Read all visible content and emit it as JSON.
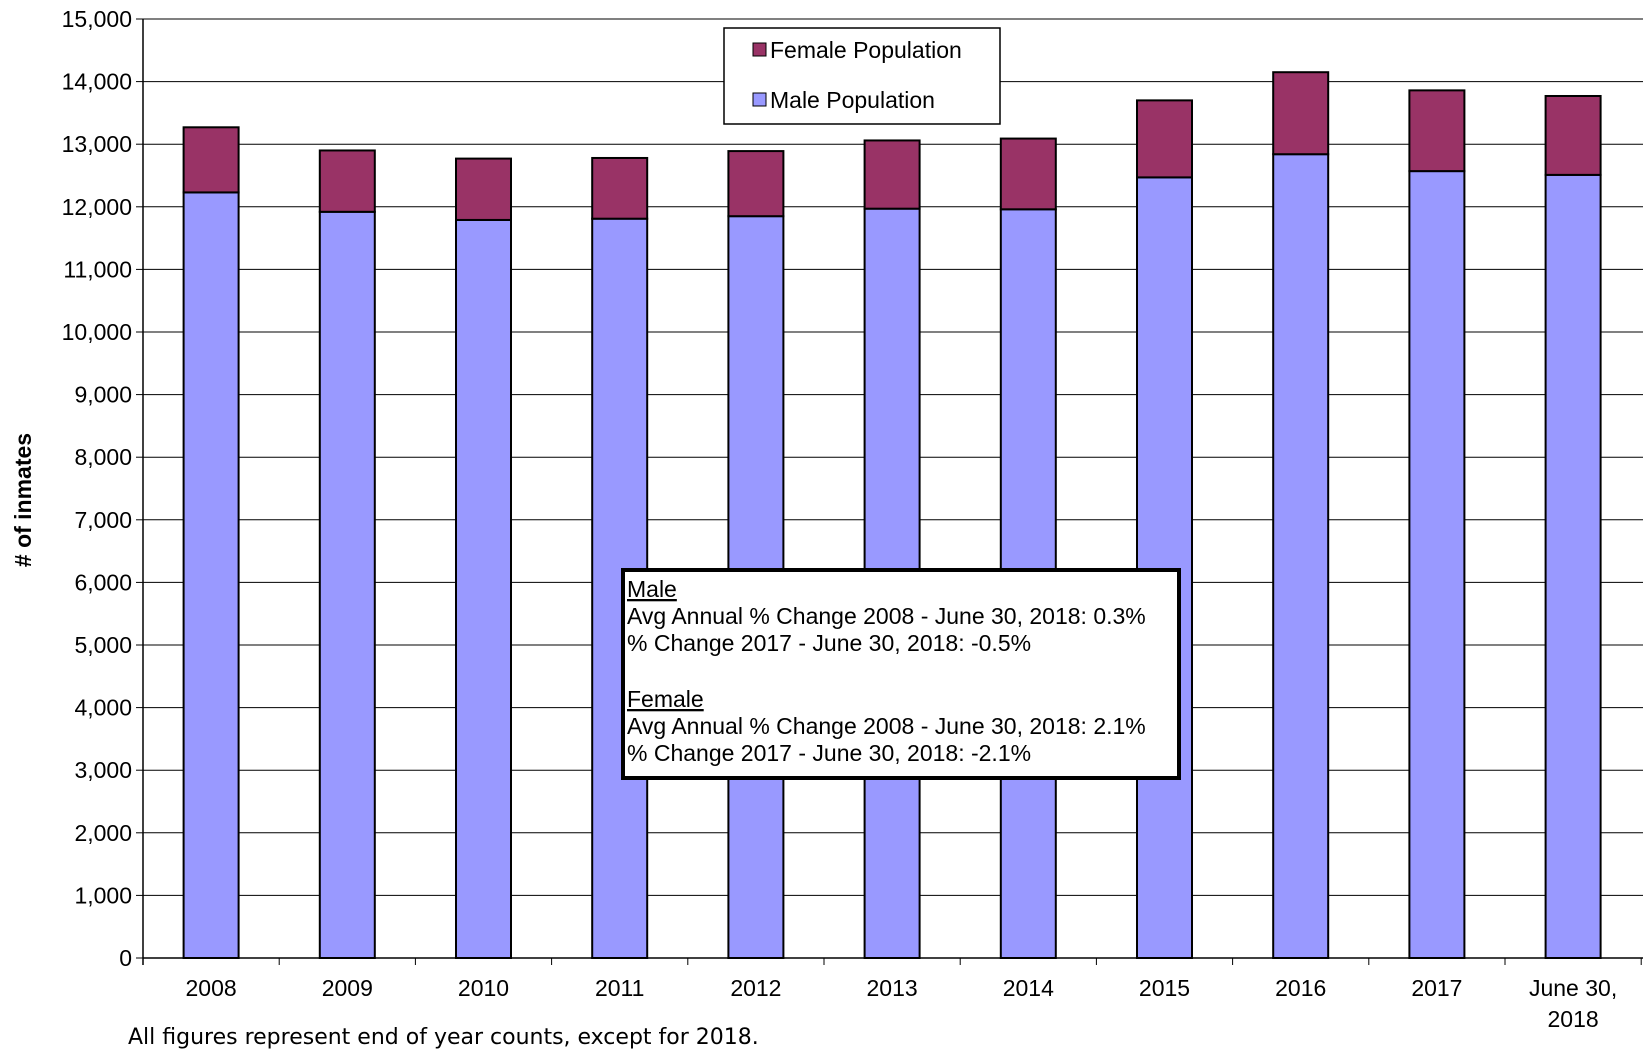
{
  "chart_data": {
    "type": "bar",
    "stacked": true,
    "categories": [
      [
        "2008"
      ],
      [
        "2009"
      ],
      [
        "2010"
      ],
      [
        "2011"
      ],
      [
        "2012"
      ],
      [
        "2013"
      ],
      [
        "2014"
      ],
      [
        "2015"
      ],
      [
        "2016"
      ],
      [
        "2017"
      ],
      [
        "June 30,",
        "2018"
      ]
    ],
    "series": [
      {
        "name": "Male Population",
        "color": "#9999ff",
        "values": [
          12230,
          11920,
          11790,
          11810,
          11850,
          11970,
          11960,
          12470,
          12840,
          12570,
          12510
        ]
      },
      {
        "name": "Female Population",
        "color": "#993366",
        "values": [
          1040,
          980,
          980,
          970,
          1040,
          1090,
          1130,
          1230,
          1310,
          1290,
          1260
        ]
      }
    ],
    "ylabel": "# of inmates",
    "ylim": [
      0,
      15000
    ],
    "ytick_step": 1000,
    "ytick_labels": [
      "0",
      "1,000",
      "2,000",
      "3,000",
      "4,000",
      "5,000",
      "6,000",
      "7,000",
      "8,000",
      "9,000",
      "10,000",
      "11,000",
      "12,000",
      "13,000",
      "14,000",
      "15,000"
    ],
    "grid": true,
    "legend_placement": "top-center",
    "legend": [
      "Female Population",
      "Male Population"
    ],
    "annotation": {
      "male_heading": "Male",
      "male_lines": [
        "Avg Annual % Change 2008 - June 30, 2018: 0.3%",
        "% Change 2017 - June 30, 2018: -0.5%"
      ],
      "female_heading": "Female",
      "female_lines": [
        "Avg Annual % Change 2008 - June 30, 2018: 2.1%",
        "% Change 2017 - June 30, 2018: -2.1%"
      ]
    },
    "footnote": "All figures represent end of year counts, except for 2018."
  }
}
